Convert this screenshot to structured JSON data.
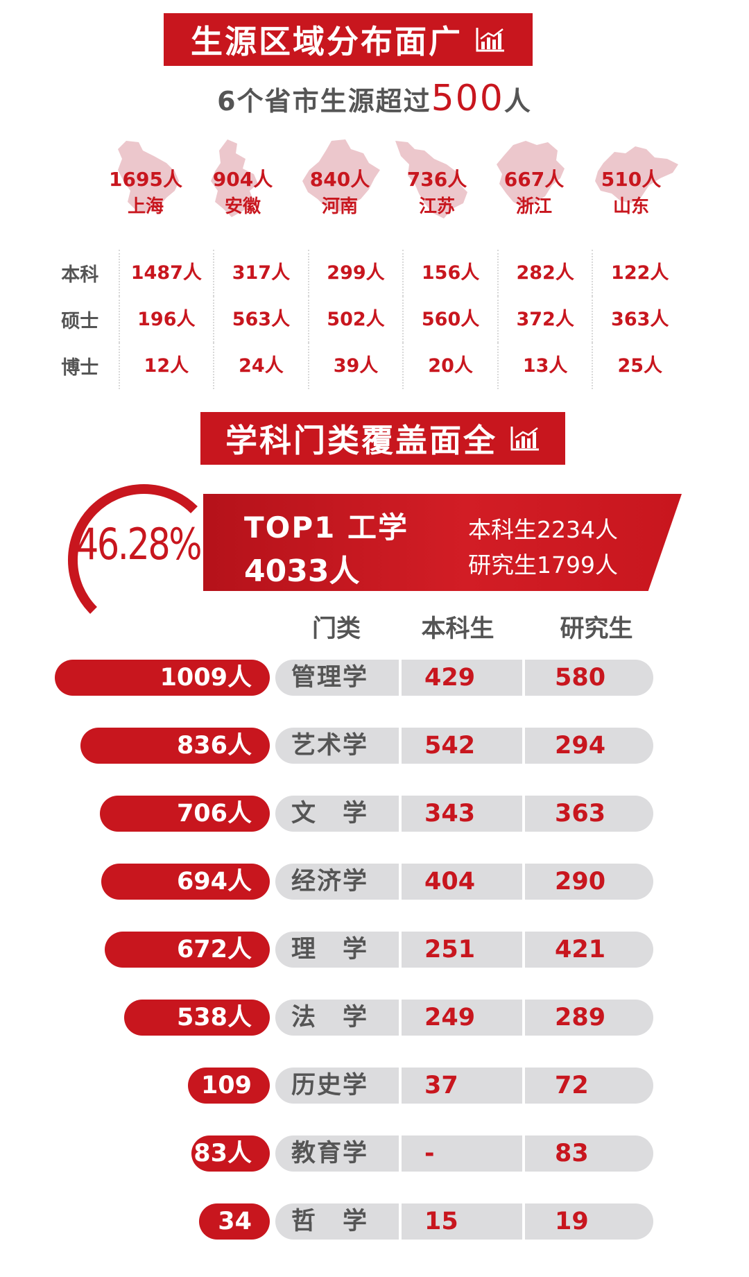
{
  "section1": {
    "title": "生源区域分布面广",
    "icon": "bar-chart-icon"
  },
  "subtitle": {
    "prefix": "6个省市生源超过",
    "number": "500",
    "suffix": "人"
  },
  "provinces": [
    {
      "count": "1695人",
      "name": "上海"
    },
    {
      "count": "904人",
      "name": "安徽"
    },
    {
      "count": "840人",
      "name": "河南"
    },
    {
      "count": "736人",
      "name": "江苏"
    },
    {
      "count": "667人",
      "name": "浙江"
    },
    {
      "count": "510人",
      "name": "山东"
    }
  ],
  "degrees": [
    {
      "label": "本科",
      "values": [
        "1487人",
        "317人",
        "299人",
        "156人",
        "282人",
        "122人"
      ]
    },
    {
      "label": "硕士",
      "values": [
        "196人",
        "563人",
        "502人",
        "560人",
        "372人",
        "363人"
      ]
    },
    {
      "label": "博士",
      "values": [
        "12人",
        "24人",
        "39人",
        "20人",
        "13人",
        "25人"
      ]
    }
  ],
  "section2": {
    "title": "学科门类覆盖面全",
    "icon": "bar-chart-icon"
  },
  "top1": {
    "percent": "46.28%",
    "rank_label": "TOP1  工学",
    "total": "4033人",
    "undergrad": "本科生2234人",
    "grad": "研究生1799人"
  },
  "table_headers": {
    "category": "门类",
    "undergrad": "本科生",
    "grad": "研究生"
  },
  "disciplines": [
    {
      "total": "1009人",
      "name": "管理学",
      "undergrad": "429",
      "grad": "580",
      "total_value": 1009
    },
    {
      "total": "836人",
      "name": "艺术学",
      "undergrad": "542",
      "grad": "294",
      "total_value": 836
    },
    {
      "total": "706人",
      "name": "文　学",
      "undergrad": "343",
      "grad": "363",
      "total_value": 706
    },
    {
      "total": "694人",
      "name": "经济学",
      "undergrad": "404",
      "grad": "290",
      "total_value": 694
    },
    {
      "total": "672人",
      "name": "理　学",
      "undergrad": "251",
      "grad": "421",
      "total_value": 672
    },
    {
      "total": "538人",
      "name": "法　学",
      "undergrad": "249",
      "grad": "289",
      "total_value": 538
    },
    {
      "total": "109人",
      "name": "历史学",
      "undergrad": "37",
      "grad": "72",
      "total_value": 109
    },
    {
      "total": "83人",
      "name": "教育学",
      "undergrad": "-",
      "grad": "83",
      "total_value": 83
    },
    {
      "total": "34人",
      "name": "哲　学",
      "undergrad": "15",
      "grad": "19",
      "total_value": 34
    }
  ],
  "colors": {
    "accent": "#c8161e",
    "map_fill": "#ecc7cc",
    "pill_gray": "#dcdcde"
  }
}
